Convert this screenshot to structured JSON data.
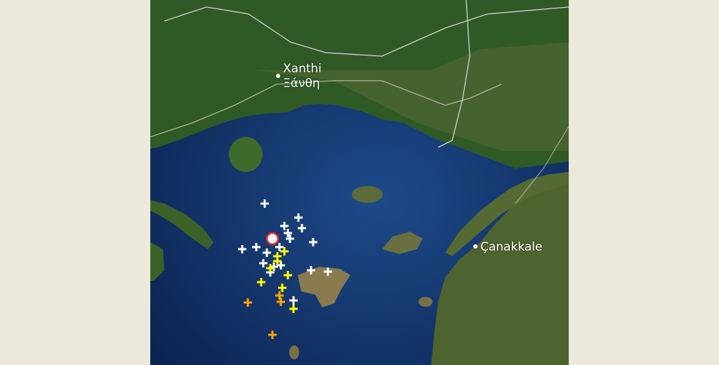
{
  "map": {
    "type": "satellite",
    "places": [
      {
        "name": "Xanthi",
        "name_local": "Ξάνθη"
      },
      {
        "name": "Çanakkale"
      }
    ],
    "marker_colors": {
      "recent": "#ffffff",
      "older": "#ffff00",
      "oldest": "#ffa500",
      "main_shock": "#ff2020"
    },
    "markers": {
      "white_count": 18,
      "yellow_count": 8,
      "orange_count": 4,
      "main_shock_count": 1
    }
  }
}
